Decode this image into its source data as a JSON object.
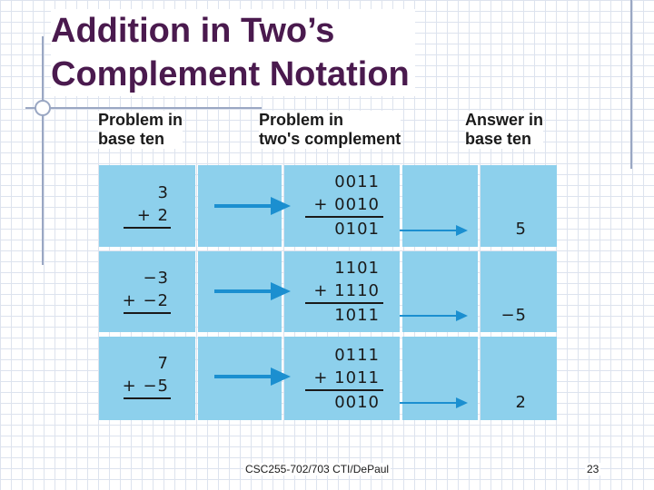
{
  "slide": {
    "title_line1": "Addition in Two’s",
    "title_line2": "Complement Notation",
    "footer": "CSC255-702/703  CTI/DePaul",
    "page_number": "23"
  },
  "table": {
    "headers": {
      "col1": [
        "Problem in",
        "base ten"
      ],
      "col2": [
        "Problem in",
        "two's complement"
      ],
      "col3": [
        "Answer in",
        "base ten"
      ]
    },
    "rows": [
      {
        "base_ten_top": "3",
        "base_ten_bottom": "+ 2",
        "tc_top": "0011",
        "tc_bottom": "+ 0010",
        "tc_result": "0101",
        "answer": "5"
      },
      {
        "base_ten_top": "−3",
        "base_ten_bottom": "+ −2",
        "tc_top": "1101",
        "tc_bottom": "+ 1110",
        "tc_result": "1011",
        "answer": "−5"
      },
      {
        "base_ten_top": "7",
        "base_ten_bottom": "+ −5",
        "tc_top": "0111",
        "tc_bottom": "+ 1011",
        "tc_result": "0010",
        "answer": "2"
      }
    ]
  },
  "colors": {
    "title": "#4a1a4e",
    "cell": "#8dd0ec",
    "arrow": "#1b8fd0"
  },
  "icons": [
    "arrow-right-icon"
  ]
}
